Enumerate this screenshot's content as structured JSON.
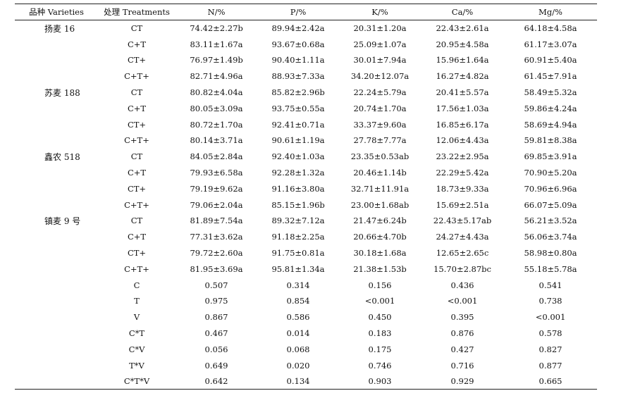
{
  "headers": [
    "品种 Varieties",
    "处理 Treatments",
    "N/%",
    "P/%",
    "K/%",
    "Ca/%",
    "Mg/%"
  ],
  "rows": [
    [
      "扬麦 16",
      "CT",
      "74.42±2.27b",
      "89.94±2.42a",
      "20.31±1.20a",
      "22.43±2.61a",
      "64.18±4.58a"
    ],
    [
      "",
      "C+T",
      "83.11±1.67a",
      "93.67±0.68a",
      "25.09±1.07a",
      "20.95±4.58a",
      "61.17±3.07a"
    ],
    [
      "",
      "CT+",
      "76.97±1.49b",
      "90.40±1.11a",
      "30.01±7.94a",
      "15.96±1.64a",
      "60.91±5.40a"
    ],
    [
      "",
      "C+T+",
      "82.71±4.96a",
      "88.93±7.33a",
      "34.20±12.07a",
      "16.27±4.82a",
      "61.45±7.91a"
    ],
    [
      "苏麦 188",
      "CT",
      "80.82±4.04a",
      "85.82±2.96b",
      "22.24±5.79a",
      "20.41±5.57a",
      "58.49±5.32a"
    ],
    [
      "",
      "C+T",
      "80.05±3.09a",
      "93.75±0.55a",
      "20.74±1.70a",
      "17.56±1.03a",
      "59.86±4.24a"
    ],
    [
      "",
      "CT+",
      "80.72±1.70a",
      "92.41±0.71a",
      "33.37±9.60a",
      "16.85±6.17a",
      "58.69±4.94a"
    ],
    [
      "",
      "C+T+",
      "80.14±3.71a",
      "90.61±1.19a",
      "27.78±7.77a",
      "12.06±4.43a",
      "59.81±8.38a"
    ],
    [
      "鑫农 518",
      "CT",
      "84.05±2.84a",
      "92.40±1.03a",
      "23.35±0.53ab",
      "23.22±2.95a",
      "69.85±3.91a"
    ],
    [
      "",
      "C+T",
      "79.93±6.58a",
      "92.28±1.32a",
      "20.46±1.14b",
      "22.29±5.42a",
      "70.90±5.20a"
    ],
    [
      "",
      "CT+",
      "79.19±9.62a",
      "91.16±3.80a",
      "32.71±11.91a",
      "18.73±9.33a",
      "70.96±6.96a"
    ],
    [
      "",
      "C+T+",
      "79.06±2.04a",
      "85.15±1.96b",
      "23.00±1.68ab",
      "15.69±2.51a",
      "66.07±5.09a"
    ],
    [
      "镇麦 9 号",
      "CT",
      "81.89±7.54a",
      "89.32±7.12a",
      "21.47±6.24b",
      "22.43±5.17ab",
      "56.21±3.52a"
    ],
    [
      "",
      "C+T",
      "77.31±3.62a",
      "91.18±2.25a",
      "20.66±4.70b",
      "24.27±4.43a",
      "56.06±3.74a"
    ],
    [
      "",
      "CT+",
      "79.72±2.60a",
      "91.75±0.81a",
      "30.18±1.68a",
      "12.65±2.65c",
      "58.98±0.80a"
    ],
    [
      "",
      "C+T+",
      "81.95±3.69a",
      "95.81±1.34a",
      "21.38±1.53b",
      "15.70±2.87bc",
      "55.18±5.78a"
    ]
  ],
  "stats": [
    [
      "C",
      "0.507",
      "0.314",
      "0.156",
      "0.436",
      "0.541"
    ],
    [
      "T",
      "0.975",
      "0.854",
      "<0.001",
      "<0.001",
      "0.738"
    ],
    [
      "V",
      "0.867",
      "0.586",
      "0.450",
      "0.395",
      "<0.001"
    ],
    [
      "C*T",
      "0.467",
      "0.014",
      "0.183",
      "0.876",
      "0.578"
    ],
    [
      "C*V",
      "0.056",
      "0.068",
      "0.175",
      "0.427",
      "0.827"
    ],
    [
      "T*V",
      "0.649",
      "0.020",
      "0.746",
      "0.716",
      "0.877"
    ],
    [
      "C*T*V",
      "0.642",
      "0.134",
      "0.903",
      "0.929",
      "0.665"
    ]
  ]
}
